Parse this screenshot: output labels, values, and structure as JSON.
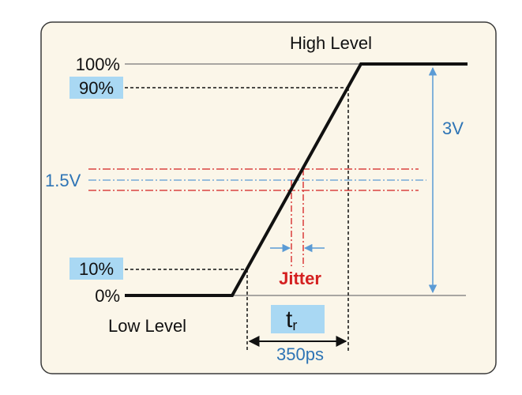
{
  "diagram": {
    "labels": {
      "high_level": "High Level",
      "low_level": "Low Level",
      "pct_100": "100%",
      "pct_90": "90%",
      "pct_10": "10%",
      "pct_0": "0%",
      "mid_voltage": "1.5V",
      "amplitude": "3V",
      "jitter": "Jitter",
      "rise_time_symbol": "t",
      "rise_time_subscript": "r",
      "rise_time_value": "350ps"
    },
    "colors": {
      "panel_fill": "#fbf6e9",
      "panel_border": "#3a3a3a",
      "signal": "#111111",
      "highlight": "#a9d8f3",
      "dimension_blue": "#5b9bd5",
      "jitter_red": "#d42020",
      "guide_gray": "#777777"
    }
  }
}
